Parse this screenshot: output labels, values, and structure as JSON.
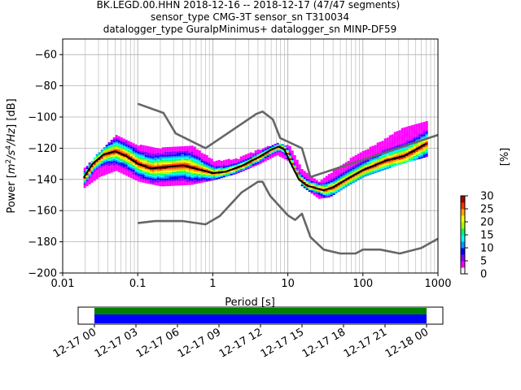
{
  "figure": {
    "title_lines": [
      "BK.LEGD.00.HHN   2018-12-16 -- 2018-12-17  (47/47 segments)",
      "sensor_type CMG-3T sensor_sn T310034",
      "datalogger_type GuralpMinimus+ datalogger_sn MINP-DF59"
    ]
  },
  "chart_data": [
    {
      "type": "heatmap",
      "title": "BK.LEGD.00.HHN   2018-12-16 -- 2018-12-17  (47/47 segments)",
      "xlabel": "Period [s]",
      "ylabel_parts": {
        "a": "Power [",
        "m": "m",
        "e1": "2",
        "s": "/s",
        "e2": "4",
        "hz": "/Hz",
        "b": "] [dB]"
      },
      "x_scale": "log",
      "xlim": [
        0.01,
        1000
      ],
      "ylim": [
        -200,
        -50
      ],
      "x_ticks": [
        0.01,
        0.1,
        1,
        10,
        100,
        1000
      ],
      "x_tick_labels": [
        "0.01",
        "0.1",
        "1",
        "10",
        "100",
        "1000"
      ],
      "y_ticks": [
        -200,
        -180,
        -160,
        -140,
        -120,
        -100,
        -80,
        -60
      ],
      "y_tick_labels": [
        "−200",
        "−180",
        "−160",
        "−140",
        "−120",
        "−100",
        "−80",
        "−60"
      ],
      "grid": true,
      "series": [
        {
          "name": "",
          "color": "#666666",
          "points": [
            [
              0.1,
              -91.5
            ],
            [
              0.22,
              -97.4
            ],
            [
              0.32,
              -110.5
            ],
            [
              0.8,
              -120
            ],
            [
              3.8,
              -98
            ],
            [
              4.6,
              -96.5
            ],
            [
              6.3,
              -101.5
            ],
            [
              7.9,
              -113.5
            ],
            [
              15.4,
              -120
            ],
            [
              20.0,
              -138.5
            ],
            [
              1000,
              -111.5
            ]
          ]
        },
        {
          "name": "",
          "color": "#666666",
          "points": [
            [
              0.1,
              -168
            ],
            [
              0.17,
              -166.7
            ],
            [
              0.4,
              -166.7
            ],
            [
              0.8,
              -168.8
            ],
            [
              1.24,
              -163.5
            ],
            [
              2.4,
              -148.5
            ],
            [
              4.0,
              -141.5
            ],
            [
              4.6,
              -141.5
            ],
            [
              5.8,
              -150.5
            ],
            [
              10.0,
              -163
            ],
            [
              12.5,
              -166
            ],
            [
              15.4,
              -162
            ],
            [
              20.0,
              -177
            ],
            [
              30.0,
              -185
            ],
            [
              50.0,
              -187.5
            ],
            [
              80.0,
              -187.5
            ],
            [
              100,
              -185
            ],
            [
              170,
              -185
            ],
            [
              310,
              -187.5
            ],
            [
              600,
              -184
            ],
            [
              1000,
              -178
            ]
          ]
        },
        {
          "name": "",
          "color": "#000000",
          "points": [
            [
              0.019,
              -139
            ],
            [
              0.025,
              -130
            ],
            [
              0.035,
              -124
            ],
            [
              0.05,
              -122
            ],
            [
              0.07,
              -125
            ],
            [
              0.1,
              -130
            ],
            [
              0.15,
              -133
            ],
            [
              0.25,
              -132
            ],
            [
              0.4,
              -131
            ],
            [
              0.7,
              -134
            ],
            [
              1.0,
              -136
            ],
            [
              1.5,
              -135
            ],
            [
              2.5,
              -131
            ],
            [
              4.0,
              -126
            ],
            [
              6.0,
              -121
            ],
            [
              7.5,
              -119
            ],
            [
              9.0,
              -121
            ],
            [
              11.0,
              -130
            ],
            [
              14.0,
              -140
            ],
            [
              18.0,
              -144
            ],
            [
              25.0,
              -146
            ],
            [
              30.0,
              -147
            ],
            [
              40.0,
              -145
            ],
            [
              60.0,
              -140
            ],
            [
              100,
              -134
            ],
            [
              200,
              -128
            ],
            [
              350,
              -125
            ],
            [
              500,
              -121
            ],
            [
              700,
              -117
            ]
          ]
        }
      ],
      "envelope_lower": [
        [
          0.019,
          -145
        ],
        [
          0.03,
          -138
        ],
        [
          0.05,
          -134
        ],
        [
          0.1,
          -141
        ],
        [
          0.2,
          -144
        ],
        [
          0.5,
          -143
        ],
        [
          1.0,
          -140
        ],
        [
          2.0,
          -136
        ],
        [
          4.0,
          -130
        ],
        [
          7.0,
          -124
        ],
        [
          10.0,
          -128
        ],
        [
          15.0,
          -144
        ],
        [
          25.0,
          -152
        ],
        [
          35.0,
          -151
        ],
        [
          60.0,
          -144
        ],
        [
          100,
          -138
        ],
        [
          300,
          -130
        ],
        [
          700,
          -125
        ]
      ],
      "envelope_upper": [
        [
          0.019,
          -133
        ],
        [
          0.03,
          -122
        ],
        [
          0.05,
          -112
        ],
        [
          0.1,
          -118
        ],
        [
          0.2,
          -120
        ],
        [
          0.5,
          -118
        ],
        [
          1.0,
          -128
        ],
        [
          2.0,
          -127
        ],
        [
          4.0,
          -121
        ],
        [
          7.0,
          -117
        ],
        [
          10.0,
          -118
        ],
        [
          15.0,
          -134
        ],
        [
          25.0,
          -142
        ],
        [
          40.0,
          -134
        ],
        [
          70.0,
          -126
        ],
        [
          150,
          -117
        ],
        [
          300,
          -108
        ],
        [
          700,
          -102
        ]
      ]
    },
    {
      "type": "colorbar",
      "label": "[%]",
      "range": [
        0,
        30
      ],
      "ticks": [
        0,
        5,
        10,
        15,
        20,
        25,
        30
      ],
      "tick_labels": [
        "0",
        "5",
        "10",
        "15",
        "20",
        "25",
        "30"
      ],
      "colors": [
        "#ffffff",
        "#ff00ff",
        "#8800ff",
        "#0000ff",
        "#0099ff",
        "#00ffff",
        "#00ff66",
        "#aaff00",
        "#ffff00",
        "#ffaa00",
        "#ff3300",
        "#aa0000"
      ]
    },
    {
      "type": "bar",
      "tick_labels": [
        "12-17 00",
        "12-17 03",
        "12-17 06",
        "12-17 09",
        "12-17 12",
        "12-17 15",
        "12-17 18",
        "12-17 21",
        "12-18 00"
      ],
      "colors": {
        "top": "#008000",
        "bottom": "#0000ff"
      }
    }
  ]
}
